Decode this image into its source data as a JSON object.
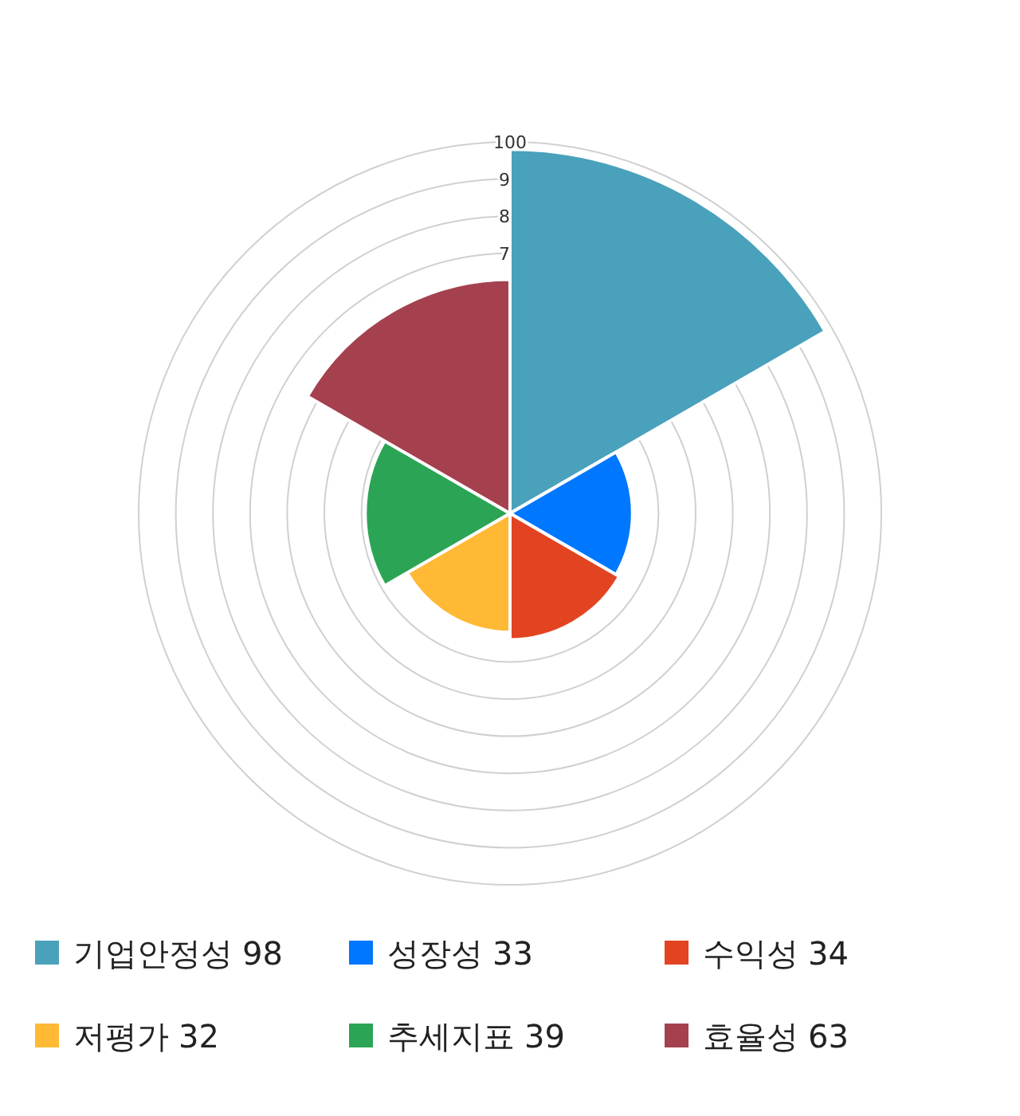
{
  "chart_data": {
    "type": "other",
    "categories": [
      "기업안정성",
      "성장성",
      "수익성",
      "저평가",
      "추세지표",
      "효율성"
    ],
    "values": [
      98,
      33,
      34,
      32,
      39,
      63
    ],
    "data_labels": true,
    "colors": [
      "#4aa1bb",
      "#0077ff",
      "#e24422",
      "#ffb934",
      "#2ba555",
      "#a5404e"
    ],
    "annotations": [
      "100",
      "9",
      "8",
      "7"
    ]
  }
}
